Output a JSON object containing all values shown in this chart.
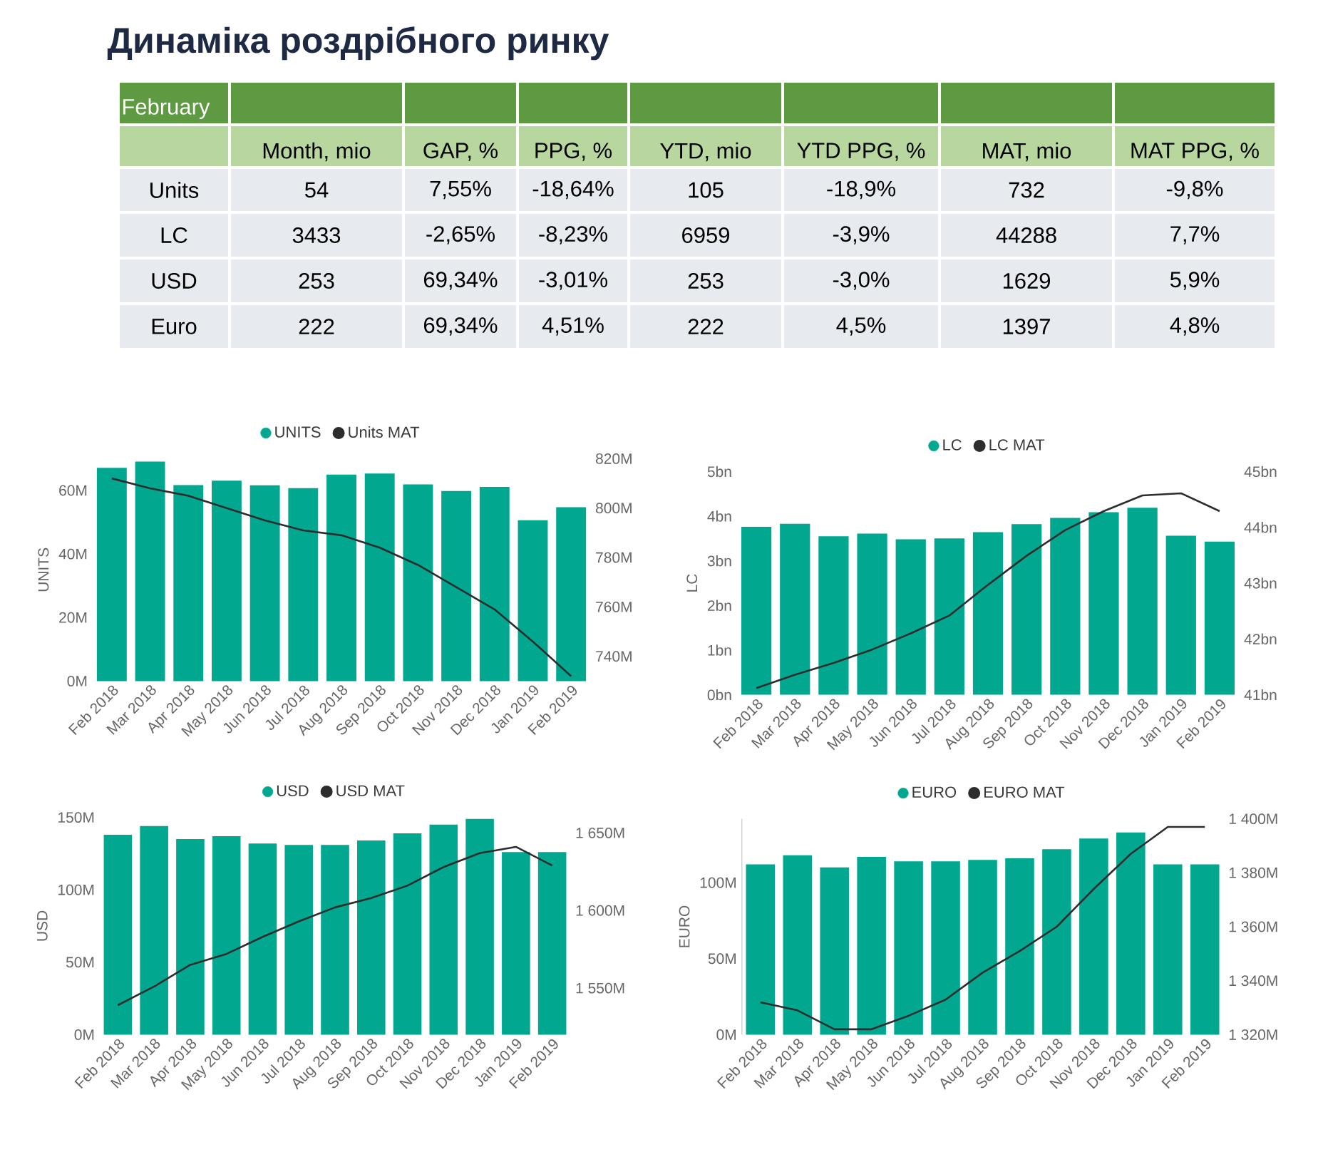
{
  "chart_data": [
    {
      "type": "other",
      "title": "Динаміка роздрібного ринку",
      "subtitle": "February",
      "categories": [
        "Month, mio",
        "GAP, %",
        "PPG, %",
        "YTD, mio",
        "YTD PPG, %",
        "MAT, mio",
        "MAT PPG, %"
      ],
      "y_categories": [
        "Units",
        "LC",
        "USD",
        "Euro"
      ],
      "cell_labels": [
        [
          "54",
          "7,55%",
          "-18,64%",
          "105",
          "-18,9%",
          "732",
          "-9,8%"
        ],
        [
          "3433",
          "-2,65%",
          "-8,23%",
          "6959",
          "-3,9%",
          "44288",
          "7,7%"
        ],
        [
          "253",
          "69,34%",
          "-3,01%",
          "253",
          "-3,0%",
          "1629",
          "5,9%"
        ],
        [
          "222",
          "69,34%",
          "4,51%",
          "222",
          "4,5%",
          "1397",
          "4,8%"
        ]
      ]
    },
    {
      "type": "bar",
      "ylabel": "UNITS",
      "legend": "top",
      "categories": [
        "Feb 2018",
        "Mar 2018",
        "Apr 2018",
        "May 2018",
        "Jun 2018",
        "Jul 2018",
        "Aug 2018",
        "Sep 2018",
        "Oct 2018",
        "Nov 2018",
        "Dec 2018",
        "Jan 2019",
        "Feb 2019"
      ],
      "series": [
        {
          "name": "UNITS",
          "color": "#01a88f",
          "values": [
            67.1,
            69.1,
            61.7,
            63.1,
            61.6,
            60.7,
            65.0,
            65.3,
            61.9,
            59.8,
            61.1,
            50.6,
            54.7
          ]
        },
        {
          "name": "Units MAT",
          "type": "line",
          "axis": "y2",
          "color": "#2d2d2d",
          "values": [
            812,
            808,
            805,
            800,
            795,
            791,
            789,
            784,
            777,
            768,
            759,
            746,
            732
          ]
        }
      ],
      "ylim": [
        0,
        70
      ],
      "yticks": [
        {
          "value": 0,
          "label": "0M"
        },
        {
          "value": 20,
          "label": "20M"
        },
        {
          "value": 40,
          "label": "40M"
        },
        {
          "value": 60,
          "label": "60M"
        }
      ],
      "y2lim": [
        730,
        820
      ],
      "y2ticks": [
        {
          "value": 740,
          "label": "740M"
        },
        {
          "value": 760,
          "label": "760M"
        },
        {
          "value": 780,
          "label": "780M"
        },
        {
          "value": 800,
          "label": "800M"
        },
        {
          "value": 820,
          "label": "820M"
        }
      ]
    },
    {
      "type": "bar",
      "ylabel": "LC",
      "legend": "top",
      "categories": [
        "Feb 2018",
        "Mar 2018",
        "Apr 2018",
        "May 2018",
        "Jun 2018",
        "Jul 2018",
        "Aug 2018",
        "Sep 2018",
        "Oct 2018",
        "Nov 2018",
        "Dec 2018",
        "Jan 2019",
        "Feb 2019"
      ],
      "series": [
        {
          "name": "LC",
          "color": "#01a88f",
          "values": [
            3.76,
            3.83,
            3.55,
            3.61,
            3.48,
            3.5,
            3.64,
            3.82,
            3.96,
            4.09,
            4.19,
            3.56,
            3.43
          ]
        },
        {
          "name": "LC MAT",
          "type": "line",
          "axis": "y2",
          "color": "#2d2d2d",
          "values": [
            41.12,
            41.36,
            41.57,
            41.81,
            42.1,
            42.42,
            42.97,
            43.49,
            43.95,
            44.29,
            44.57,
            44.61,
            44.29
          ]
        }
      ],
      "ylim": [
        0,
        5
      ],
      "yticks": [
        {
          "value": 0,
          "label": "0bn"
        },
        {
          "value": 1,
          "label": "1bn"
        },
        {
          "value": 2,
          "label": "2bn"
        },
        {
          "value": 3,
          "label": "3bn"
        },
        {
          "value": 4,
          "label": "4bn"
        },
        {
          "value": 5,
          "label": "5bn"
        }
      ],
      "y2lim": [
        41,
        45
      ],
      "y2ticks": [
        {
          "value": 41,
          "label": "41bn"
        },
        {
          "value": 42,
          "label": "42bn"
        },
        {
          "value": 43,
          "label": "43bn"
        },
        {
          "value": 44,
          "label": "44bn"
        },
        {
          "value": 45,
          "label": "45bn"
        }
      ]
    },
    {
      "type": "bar",
      "ylabel": "USD",
      "legend": "top",
      "categories": [
        "Feb 2018",
        "Mar 2018",
        "Apr 2018",
        "May 2018",
        "Jun 2018",
        "Jul 2018",
        "Aug 2018",
        "Sep 2018",
        "Oct 2018",
        "Nov 2018",
        "Dec 2018",
        "Jan 2019",
        "Feb 2019"
      ],
      "series": [
        {
          "name": "USD",
          "color": "#01a88f",
          "values": [
            138,
            144,
            135,
            137,
            132,
            131,
            131,
            134,
            139,
            145,
            149,
            126,
            126
          ]
        },
        {
          "name": "USD MAT",
          "type": "line",
          "axis": "y2",
          "color": "#2d2d2d",
          "values": [
            1539,
            1551,
            1565,
            1572,
            1583,
            1593,
            1602,
            1608,
            1616,
            1628,
            1637,
            1641,
            1629
          ]
        }
      ],
      "ylim": [
        0,
        150
      ],
      "yticks": [
        {
          "value": 0,
          "label": "0M"
        },
        {
          "value": 50,
          "label": "50M"
        },
        {
          "value": 100,
          "label": "100M"
        },
        {
          "value": 150,
          "label": "150M"
        }
      ],
      "y2lim": [
        1520,
        1660
      ],
      "y2ticks": [
        {
          "value": 1550,
          "label": "1 550M"
        },
        {
          "value": 1600,
          "label": "1 600M"
        },
        {
          "value": 1650,
          "label": "1 650M"
        }
      ]
    },
    {
      "type": "bar",
      "ylabel": "EURO",
      "legend": "top",
      "categories": [
        "Feb 2018",
        "Mar 2018",
        "Apr 2018",
        "May 2018",
        "Jun 2018",
        "Jul 2018",
        "Aug 2018",
        "Sep 2018",
        "Oct 2018",
        "Nov 2018",
        "Dec 2018",
        "Jan 2019",
        "Feb 2019"
      ],
      "series": [
        {
          "name": "EURO",
          "color": "#01a88f",
          "values": [
            112,
            118,
            110,
            117,
            114,
            114,
            115,
            116,
            122,
            129,
            133,
            112,
            112
          ]
        },
        {
          "name": "EURO MAT",
          "type": "line",
          "axis": "y2",
          "color": "#2d2d2d",
          "values": [
            1332,
            1329,
            1322,
            1322,
            1327,
            1333,
            1343,
            1351,
            1360,
            1374,
            1387,
            1397,
            1397
          ]
        }
      ],
      "ylim": [
        0,
        142
      ],
      "yticks": [
        {
          "value": 0,
          "label": "0M"
        },
        {
          "value": 50,
          "label": "50M"
        },
        {
          "value": 100,
          "label": "100M"
        }
      ],
      "y2lim": [
        1320,
        1400
      ],
      "y2ticks": [
        {
          "value": 1320,
          "label": "1 320M"
        },
        {
          "value": 1340,
          "label": "1 340M"
        },
        {
          "value": 1360,
          "label": "1 360M"
        },
        {
          "value": 1380,
          "label": "1 380M"
        },
        {
          "value": 1400,
          "label": "1 400M"
        }
      ]
    }
  ]
}
